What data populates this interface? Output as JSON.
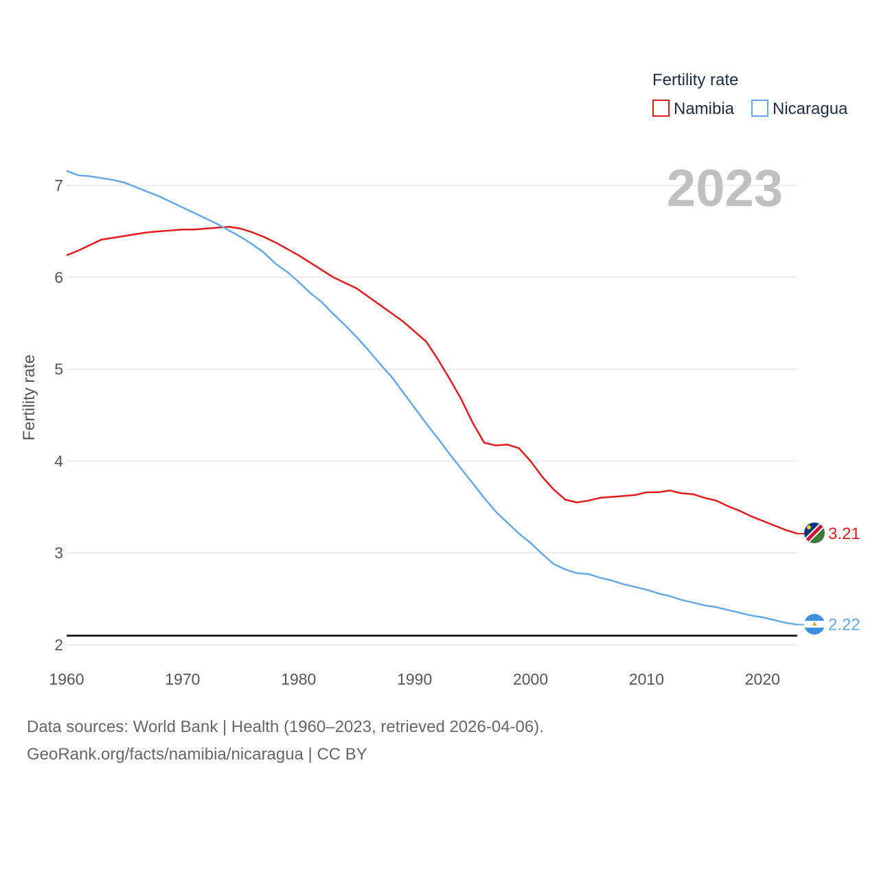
{
  "chart_data": {
    "type": "line",
    "ylabel": "Fertility rate",
    "xlabel": "",
    "legend_title": "Fertility rate",
    "legend_position": "top-right",
    "year_label": "2023",
    "xlim": [
      1960,
      2023
    ],
    "ylim": [
      2,
      7.2
    ],
    "x_ticks": [
      1960,
      1970,
      1980,
      1990,
      2000,
      2010,
      2020
    ],
    "y_ticks": [
      2,
      3,
      4,
      5,
      6,
      7
    ],
    "reference_line": 2.1,
    "x": [
      1960,
      1961,
      1962,
      1963,
      1964,
      1965,
      1966,
      1967,
      1968,
      1969,
      1970,
      1971,
      1972,
      1973,
      1974,
      1975,
      1976,
      1977,
      1978,
      1979,
      1980,
      1981,
      1982,
      1983,
      1984,
      1985,
      1986,
      1987,
      1988,
      1989,
      1990,
      1991,
      1992,
      1993,
      1994,
      1995,
      1996,
      1997,
      1998,
      1999,
      2000,
      2001,
      2002,
      2003,
      2004,
      2005,
      2006,
      2007,
      2008,
      2009,
      2010,
      2011,
      2012,
      2013,
      2014,
      2015,
      2016,
      2017,
      2018,
      2019,
      2020,
      2021,
      2022,
      2023
    ],
    "series": [
      {
        "name": "Namibia",
        "color": "#e31a1c",
        "end_label": "3.21",
        "flag": "namibia-flag",
        "values": [
          6.24,
          6.29,
          6.35,
          6.41,
          6.43,
          6.45,
          6.47,
          6.49,
          6.5,
          6.51,
          6.52,
          6.52,
          6.53,
          6.54,
          6.55,
          6.53,
          6.49,
          6.44,
          6.38,
          6.31,
          6.24,
          6.16,
          6.08,
          6.0,
          5.94,
          5.88,
          5.79,
          5.7,
          5.61,
          5.52,
          5.41,
          5.3,
          5.11,
          4.9,
          4.68,
          4.42,
          4.2,
          4.17,
          4.18,
          4.14,
          4.0,
          3.83,
          3.69,
          3.58,
          3.55,
          3.57,
          3.6,
          3.61,
          3.62,
          3.63,
          3.66,
          3.66,
          3.68,
          3.65,
          3.64,
          3.6,
          3.57,
          3.51,
          3.46,
          3.4,
          3.35,
          3.3,
          3.25,
          3.21
        ]
      },
      {
        "name": "Nicaragua",
        "color": "#64a8e8",
        "end_label": "2.22",
        "flag": "nicaragua-flag",
        "values": [
          7.16,
          7.11,
          7.1,
          7.08,
          7.06,
          7.03,
          6.98,
          6.93,
          6.88,
          6.82,
          6.76,
          6.7,
          6.64,
          6.58,
          6.51,
          6.44,
          6.36,
          6.27,
          6.15,
          6.06,
          5.95,
          5.83,
          5.73,
          5.6,
          5.48,
          5.35,
          5.21,
          5.06,
          4.92,
          4.75,
          4.58,
          4.41,
          4.25,
          4.08,
          3.92,
          3.76,
          3.6,
          3.45,
          3.33,
          3.21,
          3.11,
          2.99,
          2.88,
          2.82,
          2.78,
          2.77,
          2.73,
          2.7,
          2.66,
          2.63,
          2.6,
          2.56,
          2.53,
          2.49,
          2.46,
          2.43,
          2.41,
          2.38,
          2.35,
          2.32,
          2.3,
          2.27,
          2.24,
          2.22
        ]
      }
    ]
  },
  "source": {
    "line1": "Data sources: World Bank | Health (1960–2023, retrieved 2026-04-06).",
    "line2": "GeoRank.org/facts/namibia/nicaragua | CC BY"
  }
}
